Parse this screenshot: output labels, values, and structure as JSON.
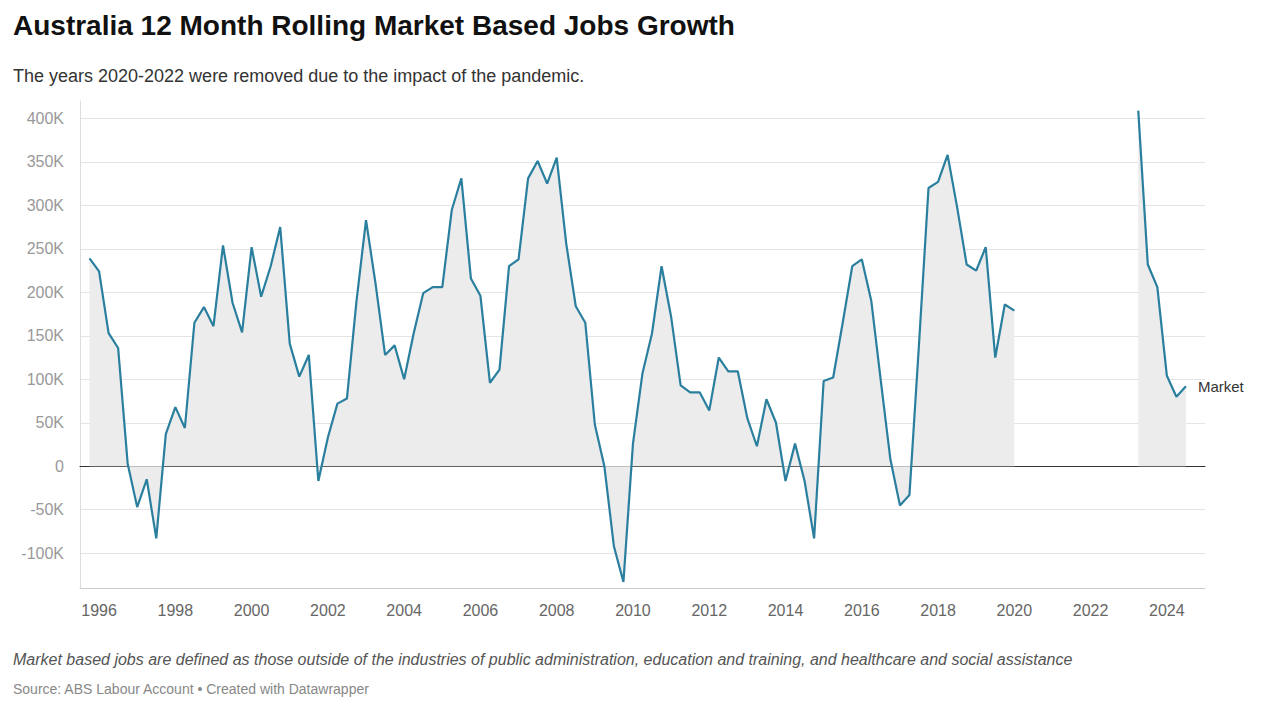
{
  "chart_data": {
    "type": "line",
    "title": "Australia 12 Month Rolling Market Based Jobs Growth",
    "subtitle": "The years 2020-2022 were removed due to the impact of the pandemic.",
    "note": "Market based jobs are defined as those outside of the industries of public administration, education and training, and healthcare and social assistance",
    "source": "Source: ABS Labour Account • Created with Datawrapper",
    "x": [
      1995.75,
      1996,
      1996.25,
      1996.5,
      1996.75,
      1997,
      1997.25,
      1997.5,
      1997.75,
      1998,
      1998.25,
      1998.5,
      1998.75,
      1999,
      1999.25,
      1999.5,
      1999.75,
      2000,
      2000.25,
      2000.5,
      2000.75,
      2001,
      2001.25,
      2001.5,
      2001.75,
      2002,
      2002.25,
      2002.5,
      2002.75,
      2003,
      2003.25,
      2003.5,
      2003.75,
      2004,
      2004.25,
      2004.5,
      2004.75,
      2005,
      2005.25,
      2005.5,
      2005.75,
      2006,
      2006.25,
      2006.5,
      2006.75,
      2007,
      2007.25,
      2007.5,
      2007.75,
      2008,
      2008.25,
      2008.5,
      2008.75,
      2009,
      2009.25,
      2009.5,
      2009.75,
      2010,
      2010.25,
      2010.5,
      2010.75,
      2011,
      2011.25,
      2011.5,
      2011.75,
      2012,
      2012.25,
      2012.5,
      2012.75,
      2013,
      2013.25,
      2013.5,
      2013.75,
      2014,
      2014.25,
      2014.5,
      2014.75,
      2015,
      2015.25,
      2015.5,
      2015.75,
      2016,
      2016.25,
      2016.5,
      2016.75,
      2017,
      2017.25,
      2017.5,
      2017.75,
      2018,
      2018.25,
      2018.5,
      2018.75,
      2019,
      2019.25,
      2019.5,
      2019.75,
      2020,
      2020.25,
      2020.5,
      2020.75,
      2021,
      2021.25,
      2021.5,
      2021.75,
      2022,
      2022.25,
      2022.5,
      2022.75,
      2023,
      2023.25,
      2023.5,
      2023.75,
      2024,
      2024.25,
      2024.5
    ],
    "series": [
      {
        "name": "Market",
        "color": "#2a7f9e",
        "values": [
          239000,
          224000,
          153000,
          136000,
          3000,
          -47000,
          -15000,
          -83000,
          37000,
          68000,
          44000,
          165000,
          183000,
          161000,
          254000,
          188000,
          154000,
          252000,
          195000,
          230000,
          275000,
          141000,
          103000,
          128000,
          -17000,
          33000,
          72000,
          78000,
          190000,
          283000,
          210000,
          128000,
          139000,
          100000,
          153000,
          199000,
          206000,
          206000,
          295000,
          331000,
          216000,
          196000,
          96000,
          111000,
          230000,
          238000,
          331000,
          351000,
          325000,
          355000,
          256000,
          184000,
          165000,
          48000,
          0,
          -92000,
          -133000,
          26000,
          107000,
          153000,
          230000,
          172000,
          93000,
          85000,
          85000,
          64000,
          125000,
          109000,
          109000,
          55000,
          23000,
          77000,
          50000,
          -17000,
          26000,
          -17000,
          -83000,
          98000,
          102000,
          165000,
          230000,
          238000,
          190000,
          98000,
          8000,
          -45000,
          -33000,
          140000,
          320000,
          327000,
          358000,
          298000,
          232000,
          225000,
          252000,
          125000,
          186000,
          179000,
          null,
          null,
          null,
          null,
          null,
          null,
          null,
          null,
          null,
          null,
          null,
          null,
          409000,
          232000,
          206000,
          104000,
          80000,
          92000
        ]
      }
    ],
    "xlim": [
      1995.5,
      2025
    ],
    "xticks": [
      1996,
      1998,
      2000,
      2002,
      2004,
      2006,
      2008,
      2010,
      2012,
      2014,
      2016,
      2018,
      2020,
      2022,
      2024
    ],
    "ylim": [
      -140000,
      420000
    ],
    "yticks": [
      {
        "value": -100000,
        "label": "-100K"
      },
      {
        "value": -50000,
        "label": "-50K"
      },
      0,
      {
        "value": 50000,
        "label": "50K"
      },
      {
        "value": 100000,
        "label": "100K"
      },
      {
        "value": 150000,
        "label": "150K"
      },
      {
        "value": 200000,
        "label": "200K"
      },
      {
        "value": 250000,
        "label": "250K"
      },
      {
        "value": 300000,
        "label": "300K"
      },
      {
        "value": 350000,
        "label": "350K"
      },
      {
        "value": 400000,
        "label": "400K"
      }
    ],
    "grid": true
  }
}
